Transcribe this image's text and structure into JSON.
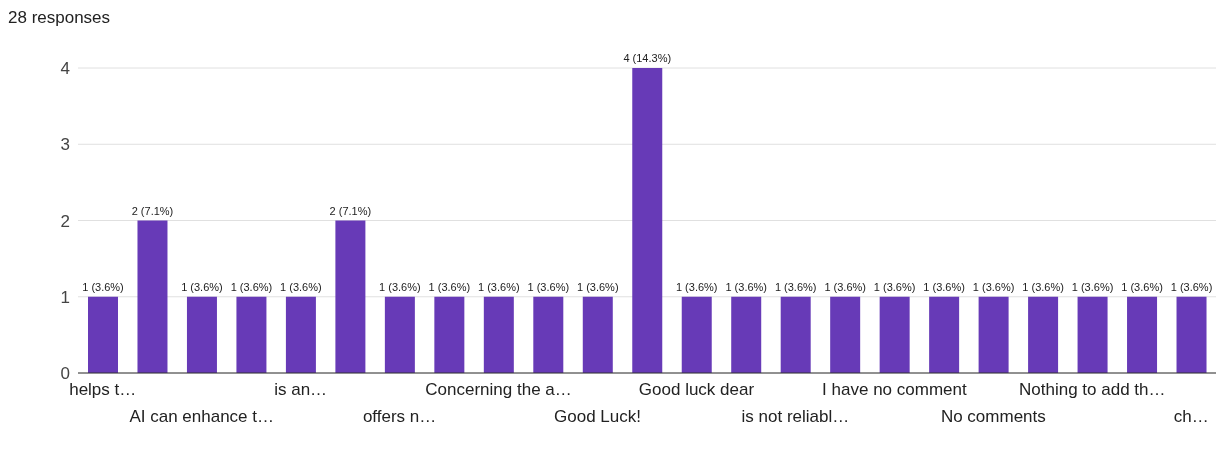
{
  "chart_data": {
    "type": "bar",
    "title": "28 responses",
    "categories": [
      "helps t…",
      null,
      "AI can enhance t…",
      null,
      "is an…",
      null,
      "offers n…",
      null,
      "Concerning the a…",
      null,
      "Good Luck!",
      null,
      "Good luck dear",
      null,
      "is not reliabl…",
      null,
      "I have no comment",
      null,
      "No comments",
      null,
      "Nothing to add th…",
      null,
      "ch…"
    ],
    "values": [
      1,
      2,
      1,
      1,
      1,
      2,
      1,
      1,
      1,
      1,
      1,
      4,
      1,
      1,
      1,
      1,
      1,
      1,
      1,
      1,
      1,
      1,
      1
    ],
    "value_labels": [
      "1 (3.6%)",
      "2 (7.1%)",
      "1 (3.6%)",
      "1 (3.6%)",
      "1 (3.6%)",
      "2 (7.1%)",
      "1 (3.6%)",
      "1 (3.6%)",
      "1 (3.6%)",
      "1 (3.6%)",
      "1 (3.6%)",
      "4 (14.3%)",
      "1 (3.6%)",
      "1 (3.6%)",
      "1 (3.6%)",
      "1 (3.6%)",
      "1 (3.6%)",
      "1 (3.6%)",
      "1 (3.6%)",
      "1 (3.6%)",
      "1 (3.6%)",
      "1 (3.6%)",
      "1 (3.6%)"
    ],
    "color": "#673ab7",
    "ylim": [
      0,
      4
    ],
    "yticks": [
      0,
      1,
      2,
      3,
      4
    ],
    "grid": "y",
    "legend": false
  }
}
